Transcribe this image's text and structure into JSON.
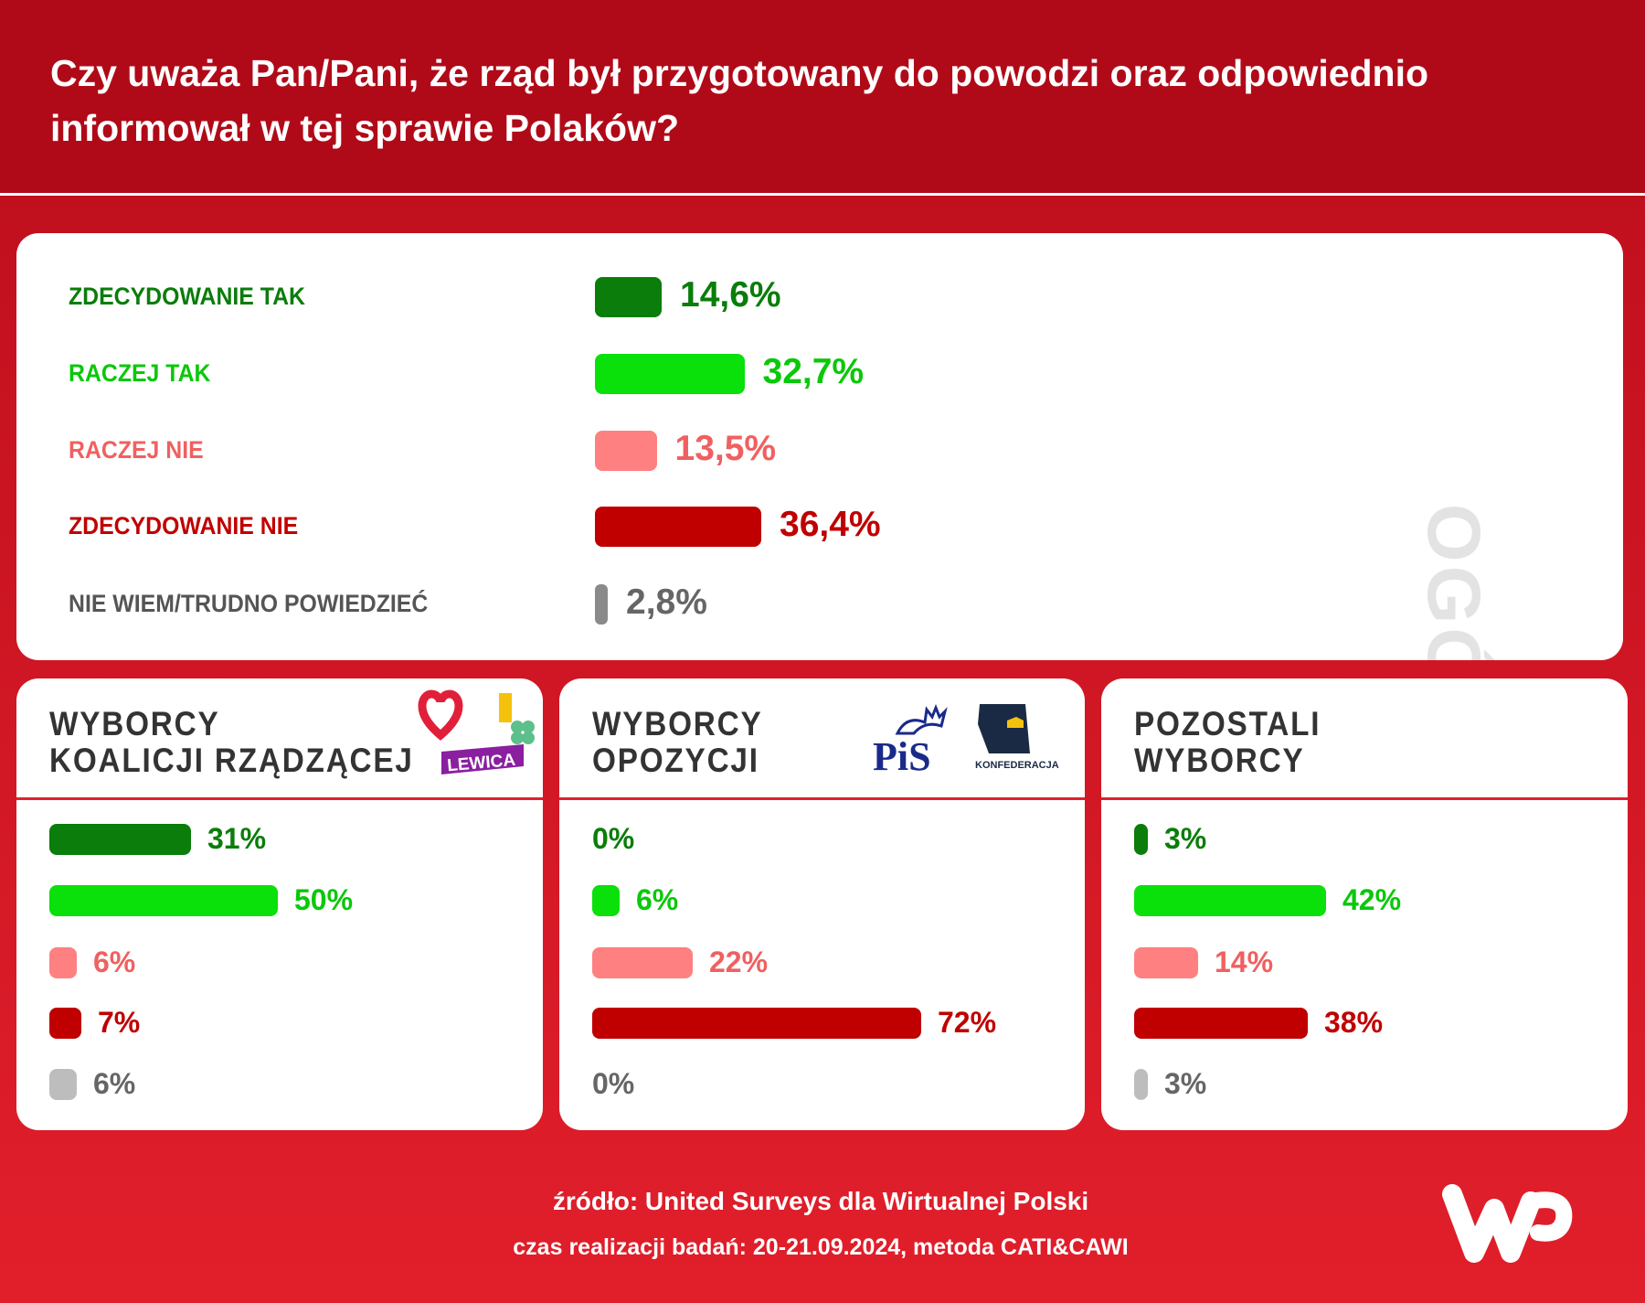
{
  "title": "Czy uważa Pan/Pani, że rząd był przygotowany do powodzi oraz odpowiednio informował w tej sprawie Polaków?",
  "colors": {
    "zdecydowanie_tak": "#0a7d0a",
    "raczej_tak": "#0ae00a",
    "raczej_nie": "#ff8080",
    "zdecydowanie_nie": "#c00000",
    "nie_wiem": "#8a8a8a",
    "nie_wiem_light": "#bdbdbd",
    "header_bg": "#b00a18"
  },
  "chart_data": [
    {
      "type": "bar",
      "title": "OGÓŁEM",
      "categories": [
        "ZDECYDOWANIE TAK",
        "RACZEJ TAK",
        "RACZEJ NIE",
        "ZDECYDOWANIE NIE",
        "NIE WIEM/TRUDNO POWIEDZIEĆ"
      ],
      "values": [
        14.6,
        32.7,
        13.5,
        36.4,
        2.8
      ],
      "labels": [
        "14,6%",
        "32,7%",
        "13,5%",
        "36,4%",
        "2,8%"
      ]
    },
    {
      "type": "bar",
      "title": "WYBORCY KOALICJI RZĄDZĄCEJ",
      "title_lines": [
        "WYBORCY",
        "KOALICJI RZĄDZĄCEJ"
      ],
      "categories": [
        "ZDECYDOWANIE TAK",
        "RACZEJ TAK",
        "RACZEJ NIE",
        "ZDECYDOWANIE NIE",
        "NIE WIEM/TRUDNO POWIEDZIEĆ"
      ],
      "values": [
        31,
        50,
        6,
        7,
        6
      ],
      "labels": [
        "31%",
        "50%",
        "6%",
        "7%",
        "6%"
      ],
      "logos": [
        "heart-logo",
        "2050-logo",
        "clover-logo",
        "LEWICA"
      ]
    },
    {
      "type": "bar",
      "title": "WYBORCY OPOZYCJI",
      "title_lines": [
        "WYBORCY",
        "OPOZYCJI"
      ],
      "categories": [
        "ZDECYDOWANIE TAK",
        "RACZEJ TAK",
        "RACZEJ NIE",
        "ZDECYDOWANIE NIE",
        "NIE WIEM/TRUDNO POWIEDZIEĆ"
      ],
      "values": [
        0,
        6,
        22,
        72,
        0
      ],
      "labels": [
        "0%",
        "6%",
        "22%",
        "72%",
        "0%"
      ],
      "logos": [
        "PiS",
        "KONFEDERACJA"
      ]
    },
    {
      "type": "bar",
      "title": "POZOSTALI WYBORCY",
      "title_lines": [
        "POZOSTALI",
        "WYBORCY"
      ],
      "categories": [
        "ZDECYDOWANIE TAK",
        "RACZEJ TAK",
        "RACZEJ NIE",
        "ZDECYDOWANIE NIE",
        "NIE WIEM/TRUDNO POWIEDZIEĆ"
      ],
      "values": [
        3,
        42,
        14,
        38,
        3
      ],
      "labels": [
        "3%",
        "42%",
        "14%",
        "38%",
        "3%"
      ]
    }
  ],
  "footer": {
    "source": "źródło: United Surveys dla Wirtualnej Polski",
    "method": "czas realizacji badań: 20-21.09.2024, metoda CATI&CAWI",
    "logo": "WP"
  }
}
